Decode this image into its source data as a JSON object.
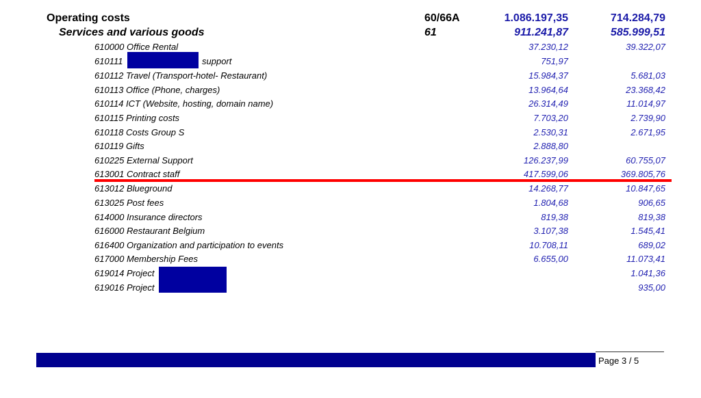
{
  "header": {
    "label": "Operating costs",
    "code": "60/66A",
    "amount_1": "1.086.197,35",
    "amount_2": "714.284,79"
  },
  "subheader": {
    "label": "Services and various goods",
    "code": "61",
    "amount_1": "911.241,87",
    "amount_2": "585.999,51"
  },
  "rows": [
    {
      "label": "610000 Office Rental",
      "amount_1": "37.230,12",
      "amount_2": "39.322,07"
    },
    {
      "label": "610111",
      "label_suffix": "support",
      "amount_1": "751,97",
      "amount_2": ""
    },
    {
      "label": "610112 Travel (Transport-hotel- Restaurant)",
      "amount_1": "15.984,37",
      "amount_2": "5.681,03"
    },
    {
      "label": "610113 Office (Phone, charges)",
      "amount_1": "13.964,64",
      "amount_2": "23.368,42"
    },
    {
      "label": "610114 ICT (Website, hosting, domain name)",
      "amount_1": "26.314,49",
      "amount_2": "11.014,97"
    },
    {
      "label": "610115 Printing costs",
      "amount_1": "7.703,20",
      "amount_2": "2.739,90"
    },
    {
      "label": "610118 Costs Group S",
      "amount_1": "2.530,31",
      "amount_2": "2.671,95"
    },
    {
      "label": "610119 Gifts",
      "amount_1": "2.888,80",
      "amount_2": ""
    },
    {
      "label": "610225 External Support",
      "amount_1": "126.237,99",
      "amount_2": "60.755,07"
    },
    {
      "label": "613001 Contract staff",
      "amount_1": "417.599,06",
      "amount_2": "369.805,76"
    },
    {
      "label": "613012 Blueground",
      "amount_1": "14.268,77",
      "amount_2": "10.847,65"
    },
    {
      "label": "613025 Post fees",
      "amount_1": "1.804,68",
      "amount_2": "906,65"
    },
    {
      "label": "614000 Insurance directors",
      "amount_1": "819,38",
      "amount_2": "819,38"
    },
    {
      "label": "616000 Restaurant Belgium",
      "amount_1": "3.107,38",
      "amount_2": "1.545,41"
    },
    {
      "label": "616400 Organization and participation to events",
      "amount_1": "10.708,11",
      "amount_2": "689,02"
    },
    {
      "label": "617000 Membership Fees",
      "amount_1": "6.655,00",
      "amount_2": "11.073,41"
    },
    {
      "label": "619014 Project",
      "amount_1": "",
      "amount_2": "1.041,36"
    },
    {
      "label": "619016 Project",
      "amount_1": "",
      "amount_2": "935,00"
    }
  ],
  "footer": {
    "page_text": "Page 3 /  5"
  },
  "colors": {
    "amount_blue": "#1f1fb0",
    "redaction_blue": "#0000a0",
    "highlight_red": "#ff0000"
  }
}
